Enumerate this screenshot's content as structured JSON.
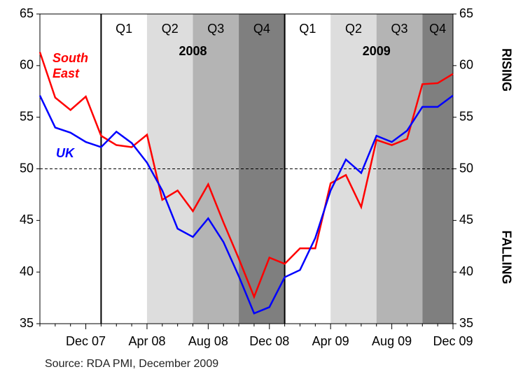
{
  "chart_data": {
    "type": "line",
    "categories": [
      null,
      null,
      null,
      "Dec 07",
      null,
      null,
      null,
      "Apr 08",
      null,
      null,
      null,
      "Aug 08",
      null,
      null,
      null,
      "Dec 08",
      null,
      null,
      null,
      "Apr 09",
      null,
      null,
      null,
      "Aug 09",
      null,
      null,
      null,
      "Dec 09"
    ],
    "series": [
      {
        "name": "South East",
        "color": "#ff0000",
        "values": [
          61.3,
          56.9,
          55.7,
          57.0,
          53.2,
          52.3,
          52.1,
          53.3,
          47.0,
          47.9,
          45.9,
          48.5,
          44.8,
          41.3,
          37.6,
          41.4,
          40.8,
          42.3,
          42.3,
          48.6,
          49.4,
          46.3,
          52.8,
          52.3,
          52.9,
          58.2,
          58.3,
          59.2
        ]
      },
      {
        "name": "UK",
        "color": "#0000ff",
        "values": [
          57.1,
          54.0,
          53.5,
          52.6,
          52.1,
          53.6,
          52.5,
          50.6,
          47.9,
          44.2,
          43.4,
          45.2,
          42.9,
          39.6,
          36.0,
          36.6,
          39.5,
          40.2,
          43.3,
          47.9,
          50.9,
          49.6,
          53.2,
          52.6,
          53.7,
          56.0,
          56.0,
          57.1
        ]
      }
    ],
    "ylim": [
      35,
      65
    ],
    "yticks": [
      35,
      40,
      45,
      50,
      55,
      60,
      65
    ],
    "y2lim": [
      35,
      65
    ],
    "y2ticks": [
      35,
      40,
      45,
      50,
      55,
      60,
      65
    ],
    "reference_line": 50,
    "quarters": [
      {
        "label": "Q1",
        "color": "#ffffff"
      },
      {
        "label": "Q2",
        "color": "#dddddd"
      },
      {
        "label": "Q3",
        "color": "#b4b4b4"
      },
      {
        "label": "Q4",
        "color": "#7f7f7f"
      },
      {
        "label": "Q1",
        "color": "#ffffff"
      },
      {
        "label": "Q2",
        "color": "#dddddd"
      },
      {
        "label": "Q3",
        "color": "#b4b4b4"
      },
      {
        "label": "Q4",
        "color": "#7f7f7f"
      }
    ],
    "years": [
      "2008",
      "2009"
    ],
    "right_labels": [
      "RISING",
      "FALLING"
    ],
    "source": "Source: RDA PMI, December 2009"
  }
}
